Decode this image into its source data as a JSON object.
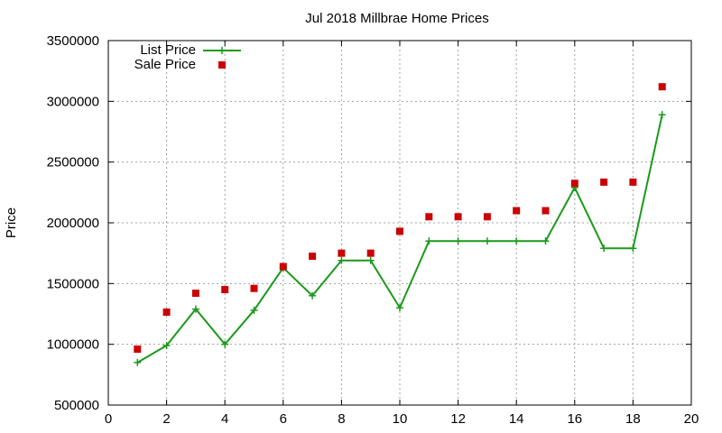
{
  "chart_data": {
    "type": "line",
    "title": "Jul 2018 Millbrae Home Prices",
    "xlabel": "",
    "ylabel": "Price",
    "xlim": [
      0,
      20
    ],
    "ylim": [
      500000,
      3500000
    ],
    "x_ticks": [
      "0",
      "2",
      "4",
      "6",
      "8",
      "10",
      "12",
      "14",
      "16",
      "18",
      "20"
    ],
    "y_ticks": [
      "500000",
      "1000000",
      "1500000",
      "2000000",
      "2500000",
      "3000000",
      "3500000"
    ],
    "grid": true,
    "legend_position": "top-left",
    "series": [
      {
        "name": "List Price",
        "style": "line-with-plus-markers",
        "color": "#1a9a1a",
        "x": [
          1,
          2,
          3,
          4,
          5,
          6,
          7,
          8,
          9,
          10,
          11,
          12,
          13,
          14,
          15,
          16,
          17,
          18,
          19
        ],
        "values": [
          850000,
          990000,
          1290000,
          1000000,
          1280000,
          1630000,
          1400000,
          1690000,
          1690000,
          1300000,
          1850000,
          1850000,
          1850000,
          1850000,
          1850000,
          2290000,
          1790000,
          1790000,
          2890000
        ]
      },
      {
        "name": "Sale Price",
        "style": "square-markers",
        "color": "#cc0000",
        "x": [
          1,
          2,
          3,
          4,
          5,
          6,
          7,
          8,
          9,
          10,
          11,
          12,
          13,
          14,
          15,
          16,
          17,
          18,
          19
        ],
        "values": [
          960000,
          1265000,
          1420000,
          1450000,
          1460000,
          1640000,
          1725000,
          1750000,
          1750000,
          1930000,
          2050000,
          2050000,
          2050000,
          2100000,
          2100000,
          2325000,
          2335000,
          2335000,
          3120000
        ]
      }
    ]
  }
}
